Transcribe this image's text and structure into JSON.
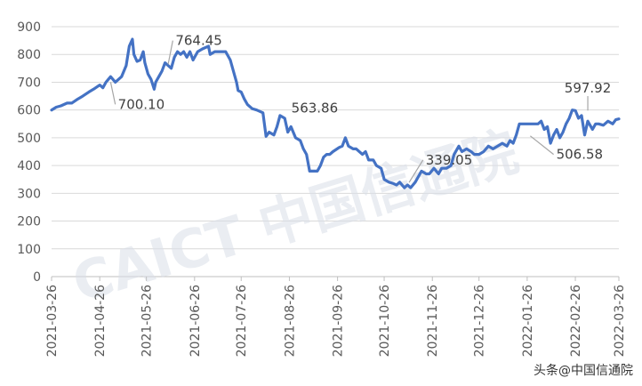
{
  "chart_data": {
    "type": "line",
    "title": "",
    "xlabel": "",
    "ylabel": "",
    "ylim": [
      0,
      900
    ],
    "yticks": [
      0,
      100,
      200,
      300,
      400,
      500,
      600,
      700,
      800,
      900
    ],
    "grid": true,
    "legend": "none",
    "x_ticks": [
      "2021-03-26",
      "2021-04-26",
      "2021-05-26",
      "2021-06-26",
      "2021-07-26",
      "2021-08-26",
      "2021-09-26",
      "2021-10-26",
      "2021-11-26",
      "2021-12-26",
      "2022-01-26",
      "2022-02-26",
      "2022-03-26"
    ],
    "series": [
      {
        "color": "#4472C4",
        "points": [
          [
            "2021-03-26",
            600
          ],
          [
            "2021-03-29",
            610
          ],
          [
            "2021-04-01",
            615
          ],
          [
            "2021-04-05",
            625
          ],
          [
            "2021-04-08",
            625
          ],
          [
            "2021-04-12",
            640
          ],
          [
            "2021-04-15",
            650
          ],
          [
            "2021-04-19",
            665
          ],
          [
            "2021-04-22",
            675
          ],
          [
            "2021-04-26",
            690
          ],
          [
            "2021-04-28",
            680
          ],
          [
            "2021-04-30",
            700
          ],
          [
            "2021-05-03",
            720
          ],
          [
            "2021-05-06",
            700
          ],
          [
            "2021-05-10",
            720
          ],
          [
            "2021-05-13",
            760
          ],
          [
            "2021-05-15",
            830
          ],
          [
            "2021-05-17",
            855
          ],
          [
            "2021-05-18",
            800
          ],
          [
            "2021-05-20",
            775
          ],
          [
            "2021-05-22",
            780
          ],
          [
            "2021-05-24",
            810
          ],
          [
            "2021-05-25",
            770
          ],
          [
            "2021-05-27",
            730
          ],
          [
            "2021-05-29",
            710
          ],
          [
            "2021-05-31",
            675
          ],
          [
            "2021-06-01",
            700
          ],
          [
            "2021-06-03",
            720
          ],
          [
            "2021-06-05",
            740
          ],
          [
            "2021-06-07",
            770
          ],
          [
            "2021-06-09",
            760
          ],
          [
            "2021-06-11",
            750
          ],
          [
            "2021-06-13",
            790
          ],
          [
            "2021-06-15",
            810
          ],
          [
            "2021-06-17",
            800
          ],
          [
            "2021-06-19",
            810
          ],
          [
            "2021-06-21",
            790
          ],
          [
            "2021-06-23",
            810
          ],
          [
            "2021-06-25",
            780
          ],
          [
            "2021-06-28",
            810
          ],
          [
            "2021-07-01",
            820
          ],
          [
            "2021-07-05",
            830
          ],
          [
            "2021-07-06",
            800
          ],
          [
            "2021-07-09",
            810
          ],
          [
            "2021-07-13",
            810
          ],
          [
            "2021-07-16",
            810
          ],
          [
            "2021-07-19",
            780
          ],
          [
            "2021-07-21",
            740
          ],
          [
            "2021-07-23",
            700
          ],
          [
            "2021-07-24",
            670
          ],
          [
            "2021-07-26",
            665
          ],
          [
            "2021-07-28",
            640
          ],
          [
            "2021-07-30",
            620
          ],
          [
            "2021-08-02",
            605
          ],
          [
            "2021-08-05",
            600
          ],
          [
            "2021-08-09",
            590
          ],
          [
            "2021-08-11",
            505
          ],
          [
            "2021-08-13",
            520
          ],
          [
            "2021-08-16",
            510
          ],
          [
            "2021-08-18",
            540
          ],
          [
            "2021-08-20",
            580
          ],
          [
            "2021-08-23",
            570
          ],
          [
            "2021-08-25",
            520
          ],
          [
            "2021-08-27",
            540
          ],
          [
            "2021-08-30",
            500
          ],
          [
            "2021-09-02",
            490
          ],
          [
            "2021-09-04",
            460
          ],
          [
            "2021-09-06",
            440
          ],
          [
            "2021-09-08",
            380
          ],
          [
            "2021-09-13",
            380
          ],
          [
            "2021-09-15",
            400
          ],
          [
            "2021-09-17",
            430
          ],
          [
            "2021-09-19",
            440
          ],
          [
            "2021-09-21",
            440
          ],
          [
            "2021-09-23",
            450
          ],
          [
            "2021-09-27",
            465
          ],
          [
            "2021-09-29",
            470
          ],
          [
            "2021-10-01",
            500
          ],
          [
            "2021-10-03",
            470
          ],
          [
            "2021-10-06",
            460
          ],
          [
            "2021-10-08",
            460
          ],
          [
            "2021-10-12",
            440
          ],
          [
            "2021-10-14",
            450
          ],
          [
            "2021-10-16",
            420
          ],
          [
            "2021-10-19",
            420
          ],
          [
            "2021-10-21",
            400
          ],
          [
            "2021-10-24",
            390
          ],
          [
            "2021-10-26",
            350
          ],
          [
            "2021-10-29",
            340
          ],
          [
            "2021-11-01",
            335
          ],
          [
            "2021-11-03",
            330
          ],
          [
            "2021-11-05",
            340
          ],
          [
            "2021-11-08",
            320
          ],
          [
            "2021-11-10",
            330
          ],
          [
            "2021-11-12",
            320
          ],
          [
            "2021-11-15",
            340
          ],
          [
            "2021-11-17",
            360
          ],
          [
            "2021-11-19",
            380
          ],
          [
            "2021-11-22",
            370
          ],
          [
            "2021-11-24",
            370
          ],
          [
            "2021-11-27",
            390
          ],
          [
            "2021-11-30",
            370
          ],
          [
            "2021-12-02",
            390
          ],
          [
            "2021-12-05",
            390
          ],
          [
            "2021-12-08",
            400
          ],
          [
            "2021-12-10",
            440
          ],
          [
            "2021-12-13",
            470
          ],
          [
            "2021-12-15",
            450
          ],
          [
            "2021-12-18",
            460
          ],
          [
            "2021-12-21",
            450
          ],
          [
            "2021-12-23",
            440
          ],
          [
            "2021-12-26",
            440
          ],
          [
            "2021-12-29",
            450
          ],
          [
            "2022-01-01",
            470
          ],
          [
            "2022-01-04",
            460
          ],
          [
            "2022-01-07",
            470
          ],
          [
            "2022-01-10",
            480
          ],
          [
            "2022-01-13",
            470
          ],
          [
            "2022-01-15",
            490
          ],
          [
            "2022-01-17",
            480
          ],
          [
            "2022-01-19",
            510
          ],
          [
            "2022-01-21",
            550
          ],
          [
            "2022-01-24",
            550
          ],
          [
            "2022-01-27",
            550
          ],
          [
            "2022-01-30",
            550
          ],
          [
            "2022-02-02",
            550
          ],
          [
            "2022-02-04",
            560
          ],
          [
            "2022-02-06",
            530
          ],
          [
            "2022-02-08",
            540
          ],
          [
            "2022-02-10",
            480
          ],
          [
            "2022-02-12",
            510
          ],
          [
            "2022-02-14",
            530
          ],
          [
            "2022-02-16",
            500
          ],
          [
            "2022-02-18",
            520
          ],
          [
            "2022-02-20",
            550
          ],
          [
            "2022-02-22",
            570
          ],
          [
            "2022-02-24",
            600
          ],
          [
            "2022-02-26",
            598
          ],
          [
            "2022-02-28",
            570
          ],
          [
            "2022-03-02",
            580
          ],
          [
            "2022-03-04",
            510
          ],
          [
            "2022-03-06",
            560
          ],
          [
            "2022-03-09",
            530
          ],
          [
            "2022-03-11",
            550
          ],
          [
            "2022-03-13",
            550
          ],
          [
            "2022-03-16",
            545
          ],
          [
            "2022-03-19",
            560
          ],
          [
            "2022-03-22",
            550
          ],
          [
            "2022-03-24",
            565
          ],
          [
            "2022-03-26",
            568
          ]
        ]
      }
    ],
    "annotations": [
      {
        "text": "700.10",
        "at": [
          "2021-05-03",
          700.1
        ],
        "label_anchor": [
          "2021-05-06",
          620
        ]
      },
      {
        "text": "764.45",
        "at": [
          "2021-06-09",
          764.45
        ],
        "label_anchor": [
          "2021-06-12",
          850
        ]
      },
      {
        "text": "563.86",
        "at": [
          "2021-09-09",
          563.86
        ],
        "label_anchor": [
          "2021-09-09",
          565
        ]
      },
      {
        "text": "339.05",
        "at": [
          "2021-11-11",
          339.05
        ],
        "label_anchor": [
          "2021-11-20",
          420
        ]
      },
      {
        "text": "506.58",
        "at": [
          "2022-01-28",
          506.58
        ],
        "label_anchor": [
          "2022-02-12",
          440
        ]
      },
      {
        "text": "597.92",
        "at": [
          "2022-03-06",
          597.92
        ],
        "label_anchor": [
          "2022-03-06",
          650
        ]
      }
    ]
  },
  "watermark": "CAICT 中国信通院",
  "footer": "头条@中国信通院"
}
